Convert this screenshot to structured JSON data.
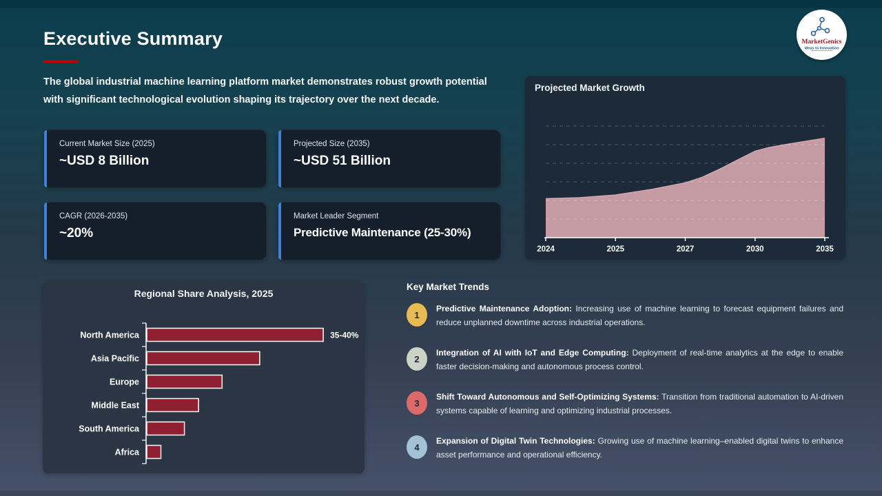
{
  "slide": {
    "title": "Executive Summary",
    "intro": "The global industrial machine learning platform market demonstrates robust growth potential with significant technological evolution shaping its trajectory over the next decade."
  },
  "colors": {
    "title_underline": "#c00000",
    "card_accent": "#3f82d9"
  },
  "logo": {
    "name": "MarketGenics",
    "tagline": "Ideas to Innovation"
  },
  "stats": [
    {
      "label": "Current Market Size (2025)",
      "value": "~USD 8 Billion"
    },
    {
      "label": "Projected Size (2035)",
      "value": "~USD 51 Billion"
    },
    {
      "label": "CAGR (2026-2035)",
      "value": "~20%"
    },
    {
      "label": "Market Leader Segment",
      "value": "Predictive Maintenance (25-30%)"
    }
  ],
  "growth_chart": {
    "title": "Projected Market Growth",
    "x_labels": [
      "2024",
      "2025",
      "2027",
      "2030",
      "2035"
    ],
    "area_color": "#c49ba3",
    "area_edge_color": "#d2abb1",
    "points": [
      {
        "x": 0,
        "v": 21
      },
      {
        "x": 0.12,
        "v": 21.5
      },
      {
        "x": 0.25,
        "v": 23
      },
      {
        "x": 0.38,
        "v": 26
      },
      {
        "x": 0.5,
        "v": 29.5
      },
      {
        "x": 0.56,
        "v": 32.5
      },
      {
        "x": 0.625,
        "v": 37
      },
      {
        "x": 0.69,
        "v": 42
      },
      {
        "x": 0.75,
        "v": 46.5
      },
      {
        "x": 0.8,
        "v": 48.5
      },
      {
        "x": 0.875,
        "v": 50.5
      },
      {
        "x": 1,
        "v": 53.5
      }
    ]
  },
  "regional_chart": {
    "title": "Regional Share Analysis, 2025",
    "categories": [
      "North America",
      "Asia Pacific",
      "Europe",
      "Middle East",
      "South America",
      "Africa"
    ],
    "values": [
      37.5,
      24,
      16,
      11,
      8,
      3
    ],
    "bar_color": "#8e2031",
    "annotation": "35-40%"
  },
  "trends": {
    "heading": "Key Market Trends",
    "items": [
      {
        "num": "1",
        "color": "#e8ba52",
        "title": "Predictive Maintenance Adoption:",
        "text": "Increasing use of machine learning to forecast equipment failures and reduce unplanned downtime across industrial operations."
      },
      {
        "num": "2",
        "color": "#ccd3c6",
        "title": "Integration of AI with IoT and Edge Computing:",
        "text": "Deployment of real-time analytics at the edge to enable faster decision-making and autonomous process control."
      },
      {
        "num": "3",
        "color": "#dd6a6a",
        "title": "Shift Toward Autonomous and Self-Optimizing Systems:",
        "text": "Transition from traditional automation to AI-driven systems capable of learning and optimizing industrial processes."
      },
      {
        "num": "4",
        "color": "#a4c2d5",
        "title": "Expansion of Digital Twin Technologies:",
        "text": "Growing use of machine learning–enabled digital twins to enhance asset performance and operational efficiency."
      }
    ]
  },
  "chart_data": [
    {
      "type": "area",
      "title": "Projected Market Growth",
      "x": [
        "2024",
        "2025",
        "2027",
        "2030",
        "2035"
      ],
      "values": [
        21,
        23,
        29.5,
        46.5,
        53.5
      ],
      "note": "y-axis unlabeled; values estimated from dashed gridlines (step ~10); x ticks evenly spaced despite uneven year intervals",
      "ylim": [
        0,
        68
      ],
      "grid": "horizontal dashed",
      "legend": "none",
      "area_color": "#c49ba3"
    },
    {
      "type": "bar",
      "orientation": "horizontal",
      "title": "Regional Share Analysis, 2025",
      "categories": [
        "North America",
        "Asia Pacific",
        "Europe",
        "Middle East",
        "South America",
        "Africa"
      ],
      "values": [
        37.5,
        24,
        16,
        11,
        8,
        3
      ],
      "data_labels": {
        "North America": "35-40%"
      },
      "xlim": [
        0,
        42
      ],
      "grid": "off",
      "legend": "none",
      "bar_color": "#8e2031"
    }
  ]
}
